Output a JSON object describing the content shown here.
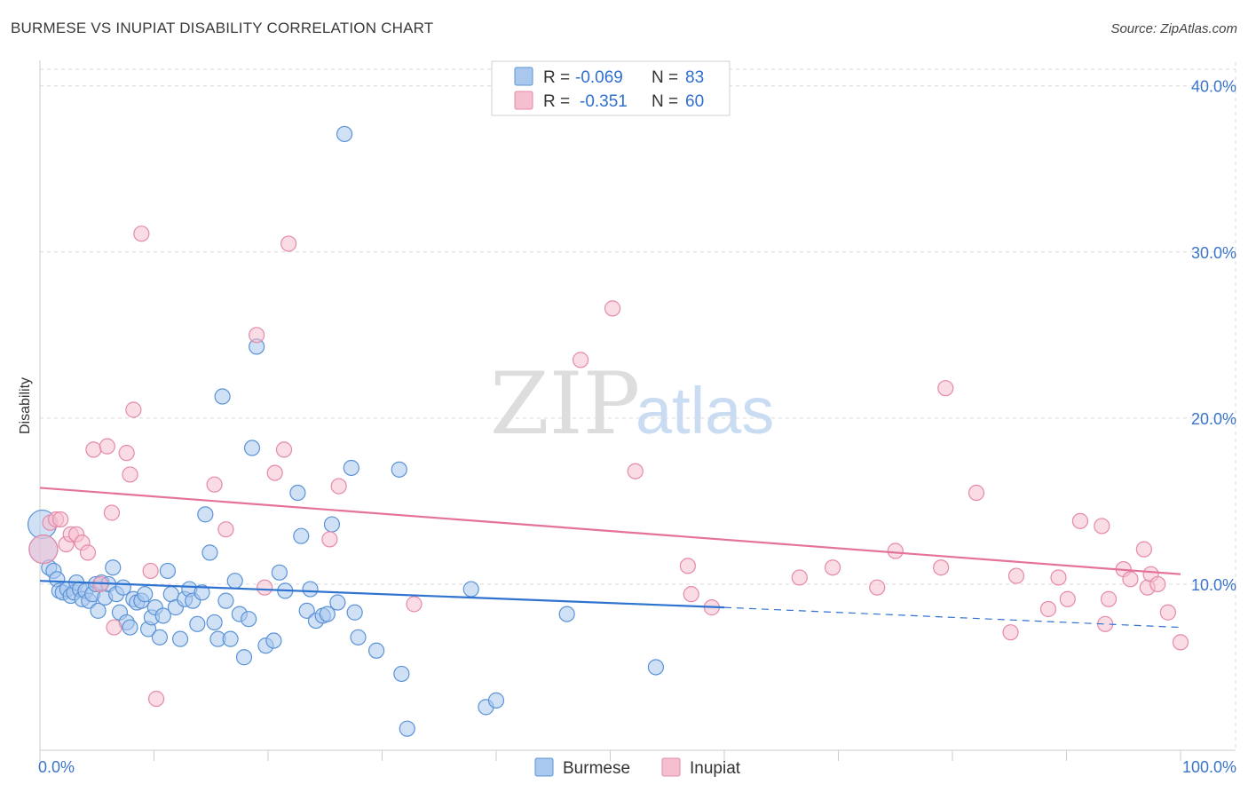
{
  "title": "BURMESE VS INUPIAT DISABILITY CORRELATION CHART",
  "source": "Source: ZipAtlas.com",
  "watermark": {
    "part1": "ZIP",
    "part2": "atlas"
  },
  "colors": {
    "burmese_fill": "#aac8ee",
    "burmese_stroke": "#5b93d6",
    "burmese_line": "#2f73d0",
    "inupiat_fill": "#f6bfd0",
    "inupiat_stroke": "#e58aa8",
    "inupiat_line": "#e4729a",
    "tick_text": "#3a74c8",
    "grid": "#d9d9d9"
  },
  "legend": {
    "r_label": "R =",
    "n_label": "N =",
    "items": [
      {
        "series": "Burmese",
        "r": "-0.069",
        "n": "83"
      },
      {
        "series": "Inupiat",
        "r": "-0.351",
        "n": "60"
      }
    ]
  },
  "chart_data": {
    "type": "scatter",
    "title": "BURMESE VS INUPIAT DISABILITY CORRELATION CHART",
    "xlabel": "",
    "ylabel": "Disability",
    "xlim": [
      0,
      100
    ],
    "ylim": [
      0,
      41
    ],
    "x_tick_labels": [
      "0.0%",
      "100.0%"
    ],
    "y_ticks": [
      10,
      20,
      30,
      40
    ],
    "y_tick_labels": [
      "10.0%",
      "20.0%",
      "30.0%",
      "40.0%"
    ],
    "grid": true,
    "legend_position": "top-center",
    "series": [
      {
        "name": "Burmese",
        "r": -0.069,
        "n": 83,
        "trend": {
          "x0": 0,
          "y0": 10.2,
          "x1": 60,
          "y1": 8.6,
          "dashed_to_x": 100,
          "dashed_to_y": 7.4
        },
        "points": [
          [
            0.2,
            13.6
          ],
          [
            0.3,
            12.1
          ],
          [
            0.8,
            11.0
          ],
          [
            1.2,
            10.8
          ],
          [
            1.5,
            10.3
          ],
          [
            1.7,
            9.6
          ],
          [
            2.0,
            9.5
          ],
          [
            2.4,
            9.7
          ],
          [
            2.7,
            9.3
          ],
          [
            3.0,
            9.5
          ],
          [
            3.2,
            10.1
          ],
          [
            3.5,
            9.7
          ],
          [
            3.7,
            9.1
          ],
          [
            4.0,
            9.6
          ],
          [
            4.3,
            9.0
          ],
          [
            4.6,
            9.4
          ],
          [
            4.9,
            10.0
          ],
          [
            5.1,
            8.4
          ],
          [
            5.4,
            10.1
          ],
          [
            5.7,
            9.2
          ],
          [
            6.0,
            10.0
          ],
          [
            6.4,
            11.0
          ],
          [
            6.7,
            9.4
          ],
          [
            7.0,
            8.3
          ],
          [
            7.3,
            9.8
          ],
          [
            7.6,
            7.7
          ],
          [
            7.9,
            7.4
          ],
          [
            8.2,
            9.1
          ],
          [
            8.5,
            8.9
          ],
          [
            8.9,
            9.0
          ],
          [
            9.2,
            9.4
          ],
          [
            9.5,
            7.3
          ],
          [
            9.8,
            8.0
          ],
          [
            10.1,
            8.6
          ],
          [
            10.5,
            6.8
          ],
          [
            10.8,
            8.1
          ],
          [
            11.2,
            10.8
          ],
          [
            11.5,
            9.4
          ],
          [
            11.9,
            8.6
          ],
          [
            12.3,
            6.7
          ],
          [
            12.7,
            9.1
          ],
          [
            13.1,
            9.7
          ],
          [
            13.4,
            9.0
          ],
          [
            13.8,
            7.6
          ],
          [
            14.2,
            9.5
          ],
          [
            14.5,
            14.2
          ],
          [
            14.9,
            11.9
          ],
          [
            15.3,
            7.7
          ],
          [
            15.6,
            6.7
          ],
          [
            16.0,
            21.3
          ],
          [
            16.3,
            9.0
          ],
          [
            16.7,
            6.7
          ],
          [
            17.1,
            10.2
          ],
          [
            17.5,
            8.2
          ],
          [
            17.9,
            5.6
          ],
          [
            18.3,
            7.9
          ],
          [
            18.6,
            18.2
          ],
          [
            19.0,
            24.3
          ],
          [
            19.8,
            6.3
          ],
          [
            20.5,
            6.6
          ],
          [
            21.0,
            10.7
          ],
          [
            21.5,
            9.6
          ],
          [
            22.6,
            15.5
          ],
          [
            22.9,
            12.9
          ],
          [
            23.4,
            8.4
          ],
          [
            23.7,
            9.7
          ],
          [
            24.2,
            7.8
          ],
          [
            24.8,
            8.1
          ],
          [
            25.2,
            8.2
          ],
          [
            25.6,
            13.6
          ],
          [
            26.1,
            8.9
          ],
          [
            26.7,
            37.1
          ],
          [
            27.3,
            17.0
          ],
          [
            27.6,
            8.3
          ],
          [
            27.9,
            6.8
          ],
          [
            29.5,
            6.0
          ],
          [
            31.5,
            16.9
          ],
          [
            31.7,
            4.6
          ],
          [
            32.2,
            1.3
          ],
          [
            37.8,
            9.7
          ],
          [
            39.1,
            2.6
          ],
          [
            40.0,
            3.0
          ],
          [
            46.2,
            8.2
          ],
          [
            54.0,
            5.0
          ]
        ]
      },
      {
        "name": "Inupiat",
        "r": -0.351,
        "n": 60,
        "trend": {
          "x0": 0,
          "y0": 15.8,
          "x1": 100,
          "y1": 10.6
        },
        "points": [
          [
            0.3,
            12.1
          ],
          [
            0.9,
            13.7
          ],
          [
            1.4,
            13.9
          ],
          [
            1.8,
            13.9
          ],
          [
            2.3,
            12.4
          ],
          [
            2.7,
            13.0
          ],
          [
            3.2,
            13.0
          ],
          [
            3.7,
            12.5
          ],
          [
            4.2,
            11.9
          ],
          [
            4.7,
            18.1
          ],
          [
            5.3,
            10.0
          ],
          [
            5.9,
            18.3
          ],
          [
            6.3,
            14.3
          ],
          [
            6.5,
            7.4
          ],
          [
            7.6,
            17.9
          ],
          [
            7.9,
            16.6
          ],
          [
            8.2,
            20.5
          ],
          [
            8.9,
            31.1
          ],
          [
            9.7,
            10.8
          ],
          [
            10.2,
            3.1
          ],
          [
            15.3,
            16.0
          ],
          [
            16.3,
            13.3
          ],
          [
            19.0,
            25.0
          ],
          [
            19.7,
            9.8
          ],
          [
            20.6,
            16.7
          ],
          [
            21.4,
            18.1
          ],
          [
            21.8,
            30.5
          ],
          [
            25.4,
            12.7
          ],
          [
            26.2,
            15.9
          ],
          [
            32.8,
            8.8
          ],
          [
            47.4,
            23.5
          ],
          [
            50.2,
            26.6
          ],
          [
            52.2,
            16.8
          ],
          [
            56.8,
            11.1
          ],
          [
            57.1,
            9.4
          ],
          [
            58.9,
            8.6
          ],
          [
            66.6,
            10.4
          ],
          [
            69.5,
            11.0
          ],
          [
            73.4,
            9.8
          ],
          [
            75.0,
            12.0
          ],
          [
            79.0,
            11.0
          ],
          [
            79.4,
            21.8
          ],
          [
            82.1,
            15.5
          ],
          [
            85.1,
            7.1
          ],
          [
            85.6,
            10.5
          ],
          [
            88.4,
            8.5
          ],
          [
            89.3,
            10.4
          ],
          [
            90.1,
            9.1
          ],
          [
            91.2,
            13.8
          ],
          [
            93.1,
            13.5
          ],
          [
            93.4,
            7.6
          ],
          [
            93.7,
            9.1
          ],
          [
            95.0,
            10.9
          ],
          [
            95.6,
            10.3
          ],
          [
            96.8,
            12.1
          ],
          [
            97.1,
            9.8
          ],
          [
            97.4,
            10.6
          ],
          [
            98.0,
            10.0
          ],
          [
            98.9,
            8.3
          ],
          [
            100.0,
            6.5
          ]
        ]
      }
    ]
  }
}
